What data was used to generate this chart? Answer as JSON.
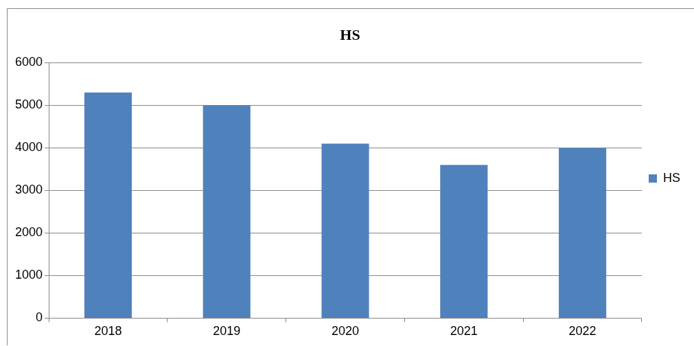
{
  "chart_data": {
    "type": "bar",
    "title": "HS",
    "categories": [
      "2018",
      "2019",
      "2020",
      "2021",
      "2022"
    ],
    "series": [
      {
        "name": "HS",
        "color": "#4f81bd",
        "values": [
          5300,
          5000,
          4100,
          3600,
          4000
        ]
      }
    ],
    "ylim": [
      0,
      6000
    ],
    "yticks": [
      0,
      1000,
      2000,
      3000,
      4000,
      5000,
      6000
    ],
    "grid": "y",
    "legend": "right"
  }
}
